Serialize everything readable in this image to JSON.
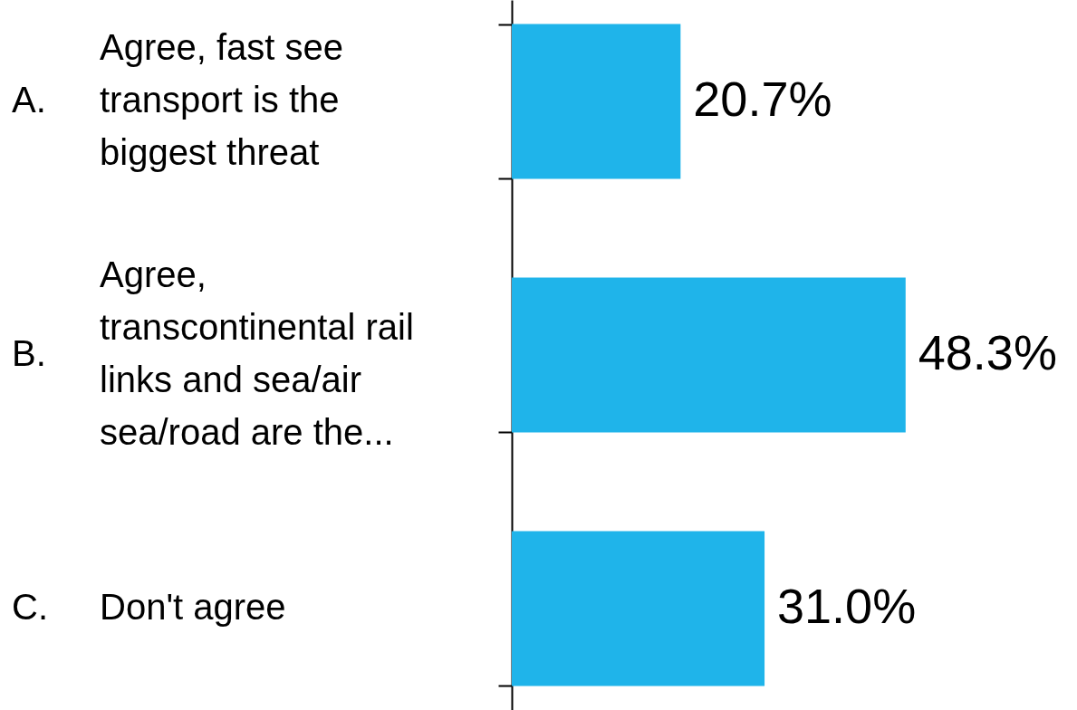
{
  "chart_data": {
    "type": "bar",
    "orientation": "horizontal",
    "categories": [
      "A. Agree, fast see transport is the biggest threat",
      "B. Agree, transcontinental rail links and sea/air sea/road are the...",
      "C. Don't agree"
    ],
    "values": [
      20.7,
      48.3,
      31.0
    ],
    "value_labels": [
      "20.7%",
      "48.3%",
      "31.0%"
    ],
    "color": "#1fb4ea"
  }
}
